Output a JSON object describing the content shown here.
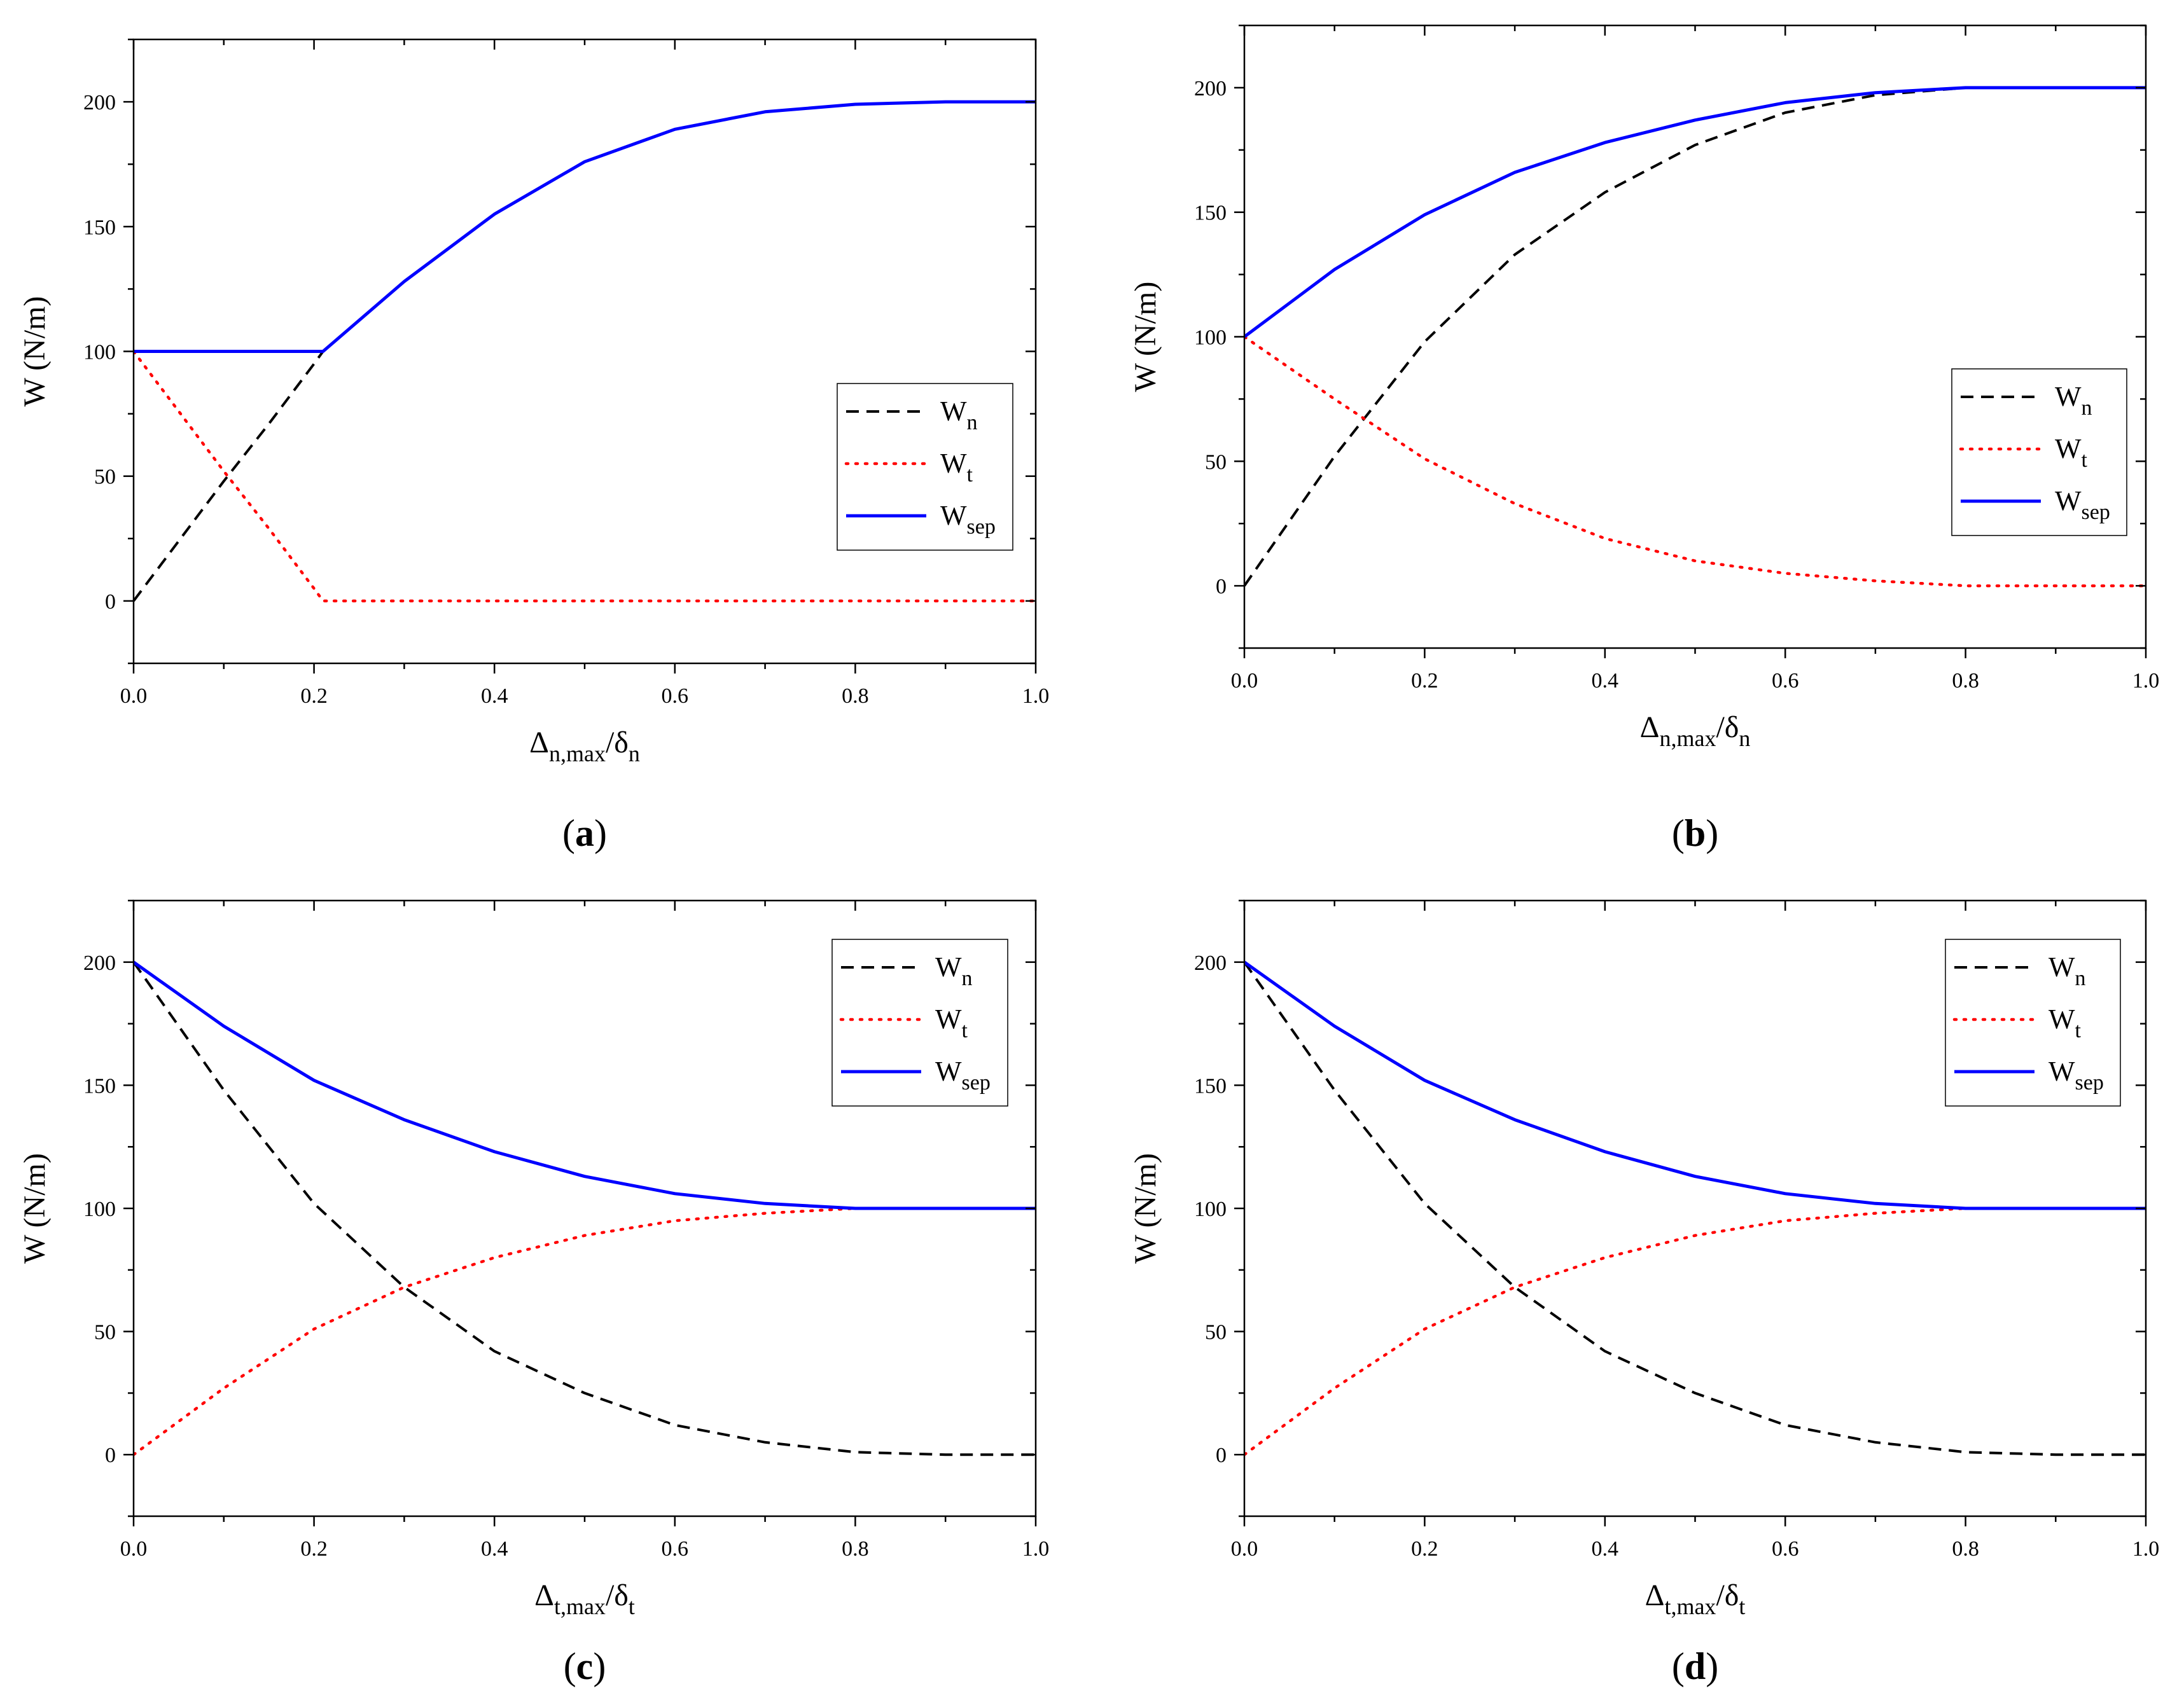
{
  "chart_data": [
    {
      "id": "a",
      "type": "line",
      "panel_label": "a",
      "xlabel": {
        "main": "Δ",
        "sub": "n,max",
        "sep": "/δ",
        "sub2": "n"
      },
      "ylabel": "W (N/m)",
      "xlim": [
        0,
        1
      ],
      "ylim": [
        -25,
        225
      ],
      "xticks": [
        "0.0",
        "0.2",
        "0.4",
        "0.6",
        "0.8",
        "1.0"
      ],
      "yticks": [
        "0",
        "50",
        "100",
        "150",
        "200"
      ],
      "ytick_values": [
        0,
        50,
        100,
        150,
        200
      ],
      "legend_position": "center-right",
      "x": [
        0.0,
        0.05,
        0.1,
        0.15,
        0.2,
        0.21,
        0.3,
        0.4,
        0.5,
        0.6,
        0.7,
        0.8,
        0.9,
        1.0
      ],
      "series": [
        {
          "name": "W",
          "sub": "n",
          "color": "#000000",
          "style": "dashed",
          "values": [
            0,
            24,
            48,
            71,
            95,
            100,
            128,
            155,
            176,
            189,
            196,
            199,
            200,
            200
          ]
        },
        {
          "name": "W",
          "sub": "t",
          "color": "#ff0000",
          "style": "dotted",
          "values": [
            100,
            76,
            52,
            29,
            5,
            0,
            0,
            0,
            0,
            0,
            0,
            0,
            0,
            0
          ]
        },
        {
          "name": "W",
          "sub": "sep",
          "color": "#0000ff",
          "style": "solid",
          "values": [
            100,
            100,
            100,
            100,
            100,
            100,
            128,
            155,
            176,
            189,
            196,
            199,
            200,
            200
          ]
        }
      ]
    },
    {
      "id": "b",
      "type": "line",
      "panel_label": "b",
      "xlabel": {
        "main": "Δ",
        "sub": "n,max",
        "sep": "/δ",
        "sub2": "n"
      },
      "ylabel": "W (N/m)",
      "xlim": [
        0,
        1
      ],
      "ylim": [
        -25,
        225
      ],
      "xticks": [
        "0.0",
        "0.2",
        "0.4",
        "0.6",
        "0.8",
        "1.0"
      ],
      "yticks": [
        "0",
        "50",
        "100",
        "150",
        "200"
      ],
      "ytick_values": [
        0,
        50,
        100,
        150,
        200
      ],
      "legend_position": "center-right",
      "x": [
        0.0,
        0.1,
        0.2,
        0.3,
        0.4,
        0.5,
        0.6,
        0.7,
        0.8,
        0.9,
        1.0
      ],
      "series": [
        {
          "name": "W",
          "sub": "n",
          "color": "#000000",
          "style": "dashed",
          "values": [
            0,
            52,
            98,
            133,
            158,
            177,
            190,
            197,
            200,
            200,
            200
          ]
        },
        {
          "name": "W",
          "sub": "t",
          "color": "#ff0000",
          "style": "dotted",
          "values": [
            100,
            75,
            51,
            33,
            19,
            10,
            5,
            2,
            0,
            0,
            0
          ]
        },
        {
          "name": "W",
          "sub": "sep",
          "color": "#0000ff",
          "style": "solid",
          "values": [
            100,
            127,
            149,
            166,
            178,
            187,
            194,
            198,
            200,
            200,
            200
          ]
        }
      ]
    },
    {
      "id": "c",
      "type": "line",
      "panel_label": "c",
      "xlabel": {
        "main": "Δ",
        "sub": "t,max",
        "sep": "/δ",
        "sub2": "t"
      },
      "ylabel": "W (N/m)",
      "xlim": [
        0,
        1
      ],
      "ylim": [
        -25,
        225
      ],
      "xticks": [
        "0.0",
        "0.2",
        "0.4",
        "0.6",
        "0.8",
        "1.0"
      ],
      "yticks": [
        "0",
        "50",
        "100",
        "150",
        "200"
      ],
      "ytick_values": [
        0,
        50,
        100,
        150,
        200
      ],
      "legend_position": "top-right",
      "x": [
        0.0,
        0.1,
        0.2,
        0.3,
        0.4,
        0.5,
        0.6,
        0.7,
        0.8,
        0.9,
        1.0
      ],
      "series": [
        {
          "name": "W",
          "sub": "n",
          "color": "#000000",
          "style": "dashed",
          "values": [
            200,
            148,
            102,
            68,
            42,
            25,
            12,
            5,
            1,
            0,
            0
          ]
        },
        {
          "name": "W",
          "sub": "t",
          "color": "#ff0000",
          "style": "dotted",
          "values": [
            0,
            27,
            51,
            68,
            80,
            89,
            95,
            98,
            100,
            100,
            100
          ]
        },
        {
          "name": "W",
          "sub": "sep",
          "color": "#0000ff",
          "style": "solid",
          "values": [
            200,
            174,
            152,
            136,
            123,
            113,
            106,
            102,
            100,
            100,
            100
          ]
        }
      ]
    },
    {
      "id": "d",
      "type": "line",
      "panel_label": "d",
      "xlabel": {
        "main": "Δ",
        "sub": "t,max",
        "sep": "/δ",
        "sub2": "t"
      },
      "ylabel": "W (N/m)",
      "xlim": [
        0,
        1
      ],
      "ylim": [
        -25,
        225
      ],
      "xticks": [
        "0.0",
        "0.2",
        "0.4",
        "0.6",
        "0.8",
        "1.0"
      ],
      "yticks": [
        "0",
        "50",
        "100",
        "150",
        "200"
      ],
      "ytick_values": [
        0,
        50,
        100,
        150,
        200
      ],
      "legend_position": "top-right",
      "x": [
        0.0,
        0.1,
        0.2,
        0.3,
        0.4,
        0.5,
        0.6,
        0.7,
        0.8,
        0.9,
        1.0
      ],
      "series": [
        {
          "name": "W",
          "sub": "n",
          "color": "#000000",
          "style": "dashed",
          "values": [
            200,
            148,
            102,
            68,
            42,
            25,
            12,
            5,
            1,
            0,
            0
          ]
        },
        {
          "name": "W",
          "sub": "t",
          "color": "#ff0000",
          "style": "dotted",
          "values": [
            0,
            27,
            51,
            68,
            80,
            89,
            95,
            98,
            100,
            100,
            100
          ]
        },
        {
          "name": "W",
          "sub": "sep",
          "color": "#0000ff",
          "style": "solid",
          "values": [
            200,
            174,
            152,
            136,
            123,
            113,
            106,
            102,
            100,
            100,
            100
          ]
        }
      ]
    }
  ]
}
